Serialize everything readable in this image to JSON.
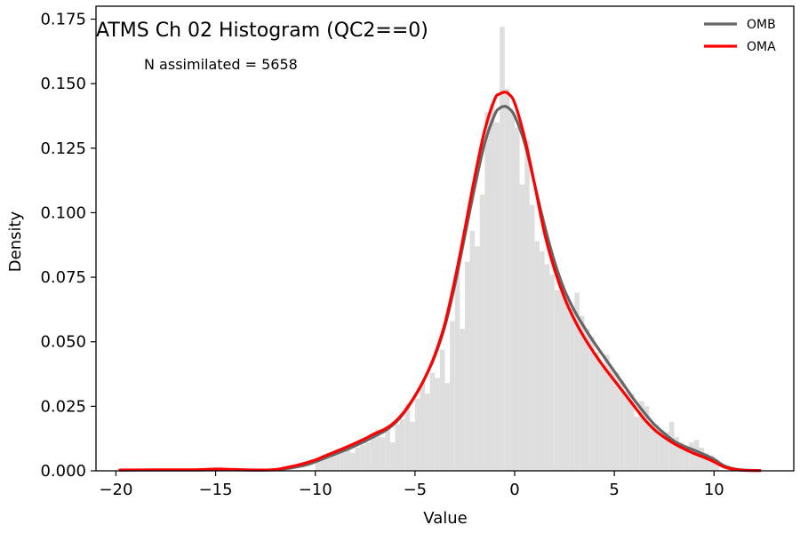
{
  "chart_data": {
    "type": "bar",
    "title": "ATMS Ch 02 Histogram (QC2==0)",
    "annotation": "N assimilated = 5658",
    "xlabel": "Value",
    "ylabel": "Density",
    "xlim": [
      -21,
      14
    ],
    "ylim": [
      0,
      0.18
    ],
    "xticks": [
      -20,
      -15,
      -10,
      -5,
      0,
      5,
      10
    ],
    "xtick_labels": [
      "−20",
      "−15",
      "−10",
      "−5",
      "0",
      "5",
      "10"
    ],
    "yticks": [
      0,
      0.025,
      0.05,
      0.075,
      0.1,
      0.125,
      0.15,
      0.175
    ],
    "ytick_labels": [
      "0.000",
      "0.025",
      "0.050",
      "0.075",
      "0.100",
      "0.125",
      "0.150",
      "0.175"
    ],
    "grid": false,
    "legend_position": "top-right",
    "histogram": {
      "color": "#dedede",
      "bin_width": 0.25,
      "bins": [
        [
          -10.0,
          0.004
        ],
        [
          -9.75,
          0.005
        ],
        [
          -9.5,
          0.005
        ],
        [
          -9.25,
          0.006
        ],
        [
          -9.0,
          0.007
        ],
        [
          -8.75,
          0.007
        ],
        [
          -8.5,
          0.008
        ],
        [
          -8.25,
          0.007
        ],
        [
          -8.0,
          0.009
        ],
        [
          -7.75,
          0.01
        ],
        [
          -7.5,
          0.011
        ],
        [
          -7.25,
          0.014
        ],
        [
          -7.0,
          0.016
        ],
        [
          -6.75,
          0.013
        ],
        [
          -6.5,
          0.016
        ],
        [
          -6.25,
          0.011
        ],
        [
          -6.0,
          0.018
        ],
        [
          -5.75,
          0.02
        ],
        [
          -5.5,
          0.026
        ],
        [
          -5.25,
          0.019
        ],
        [
          -5.0,
          0.028
        ],
        [
          -4.75,
          0.034
        ],
        [
          -4.5,
          0.03
        ],
        [
          -4.25,
          0.038
        ],
        [
          -4.0,
          0.036
        ],
        [
          -3.75,
          0.047
        ],
        [
          -3.5,
          0.034
        ],
        [
          -3.25,
          0.058
        ],
        [
          -3.0,
          0.077
        ],
        [
          -2.75,
          0.055
        ],
        [
          -2.5,
          0.081
        ],
        [
          -2.25,
          0.093
        ],
        [
          -2.0,
          0.087
        ],
        [
          -1.75,
          0.107
        ],
        [
          -1.5,
          0.139
        ],
        [
          -1.25,
          0.142
        ],
        [
          -1.0,
          0.135
        ],
        [
          -0.75,
          0.172
        ],
        [
          -0.5,
          0.148
        ],
        [
          -0.25,
          0.139
        ],
        [
          0.0,
          0.133
        ],
        [
          0.25,
          0.111
        ],
        [
          0.5,
          0.128
        ],
        [
          0.75,
          0.103
        ],
        [
          1.0,
          0.089
        ],
        [
          1.25,
          0.085
        ],
        [
          1.5,
          0.08
        ],
        [
          1.75,
          0.076
        ],
        [
          2.0,
          0.07
        ],
        [
          2.25,
          0.072
        ],
        [
          2.5,
          0.068
        ],
        [
          2.75,
          0.063
        ],
        [
          3.0,
          0.069
        ],
        [
          3.25,
          0.06
        ],
        [
          3.5,
          0.055
        ],
        [
          3.75,
          0.052
        ],
        [
          4.0,
          0.046
        ],
        [
          4.25,
          0.041
        ],
        [
          4.5,
          0.045
        ],
        [
          4.75,
          0.04
        ],
        [
          5.0,
          0.038
        ],
        [
          5.25,
          0.035
        ],
        [
          5.5,
          0.031
        ],
        [
          5.75,
          0.03
        ],
        [
          6.0,
          0.021
        ],
        [
          6.25,
          0.027
        ],
        [
          6.5,
          0.025
        ],
        [
          6.75,
          0.019
        ],
        [
          7.0,
          0.018
        ],
        [
          7.25,
          0.016
        ],
        [
          7.5,
          0.015
        ],
        [
          7.75,
          0.019
        ],
        [
          8.0,
          0.013
        ],
        [
          8.25,
          0.011
        ],
        [
          8.5,
          0.01
        ],
        [
          8.75,
          0.011
        ],
        [
          9.0,
          0.012
        ],
        [
          9.25,
          0.009
        ],
        [
          9.5,
          0.007
        ],
        [
          9.75,
          0.006
        ],
        [
          10.0,
          0.004
        ]
      ]
    },
    "series": [
      {
        "name": "OMB",
        "color": "#666666",
        "x": [
          -19.8,
          -18,
          -16,
          -15,
          -14.5,
          -13,
          -12,
          -11.5,
          -11,
          -10.5,
          -10,
          -9.5,
          -9,
          -8.5,
          -8,
          -7.5,
          -7,
          -6.5,
          -6,
          -5.5,
          -5,
          -4.5,
          -4,
          -3.5,
          -3,
          -2.5,
          -2,
          -1.5,
          -1,
          -0.75,
          -0.5,
          -0.3,
          0,
          0.5,
          1,
          1.5,
          2,
          2.5,
          3,
          3.5,
          4,
          4.5,
          5,
          5.5,
          6,
          6.5,
          7,
          7.5,
          8,
          8.5,
          9,
          9.5,
          10,
          10.5,
          11,
          11.5,
          12.3
        ],
        "y": [
          0.0003,
          0.0003,
          0.0003,
          0.0004,
          0.0004,
          0.0003,
          0.0004,
          0.0008,
          0.0014,
          0.0022,
          0.0035,
          0.005,
          0.0065,
          0.008,
          0.0097,
          0.0115,
          0.0135,
          0.0155,
          0.0185,
          0.023,
          0.029,
          0.036,
          0.0445,
          0.056,
          0.072,
          0.091,
          0.11,
          0.127,
          0.138,
          0.1405,
          0.1412,
          0.1405,
          0.1375,
          0.127,
          0.111,
          0.095,
          0.081,
          0.07,
          0.062,
          0.0555,
          0.0495,
          0.044,
          0.0385,
          0.033,
          0.0275,
          0.0225,
          0.018,
          0.0145,
          0.0115,
          0.0095,
          0.008,
          0.0063,
          0.0045,
          0.002,
          0.0008,
          0.0003,
          0.0001
        ]
      },
      {
        "name": "OMA",
        "color": "#ff0000",
        "x": [
          -19.8,
          -18,
          -16,
          -15,
          -14.5,
          -13,
          -12,
          -11.5,
          -11,
          -10.5,
          -10,
          -9.5,
          -9,
          -8.5,
          -8,
          -7.5,
          -7,
          -6.5,
          -6,
          -5.5,
          -5,
          -4.5,
          -4,
          -3.5,
          -3,
          -2.5,
          -2,
          -1.5,
          -1,
          -0.75,
          -0.5,
          -0.3,
          0,
          0.5,
          1,
          1.5,
          2,
          2.5,
          3,
          3.5,
          4,
          4.5,
          5,
          5.5,
          6,
          6.5,
          7,
          7.5,
          8,
          8.5,
          9,
          9.5,
          10,
          10.5,
          11,
          11.5,
          12.3
        ],
        "y": [
          0.0003,
          0.0004,
          0.0004,
          0.0007,
          0.0006,
          0.0003,
          0.0005,
          0.0012,
          0.002,
          0.003,
          0.0042,
          0.0058,
          0.0074,
          0.009,
          0.0107,
          0.0125,
          0.0145,
          0.0162,
          0.019,
          0.0233,
          0.029,
          0.036,
          0.045,
          0.057,
          0.074,
          0.0935,
          0.114,
          0.132,
          0.144,
          0.146,
          0.1467,
          0.146,
          0.1425,
          0.129,
          0.111,
          0.092,
          0.078,
          0.067,
          0.0585,
          0.0515,
          0.0455,
          0.04,
          0.035,
          0.03,
          0.025,
          0.02,
          0.016,
          0.013,
          0.0105,
          0.0085,
          0.0067,
          0.0052,
          0.0035,
          0.0015,
          0.0006,
          0.0002,
          0.0001
        ]
      }
    ]
  }
}
